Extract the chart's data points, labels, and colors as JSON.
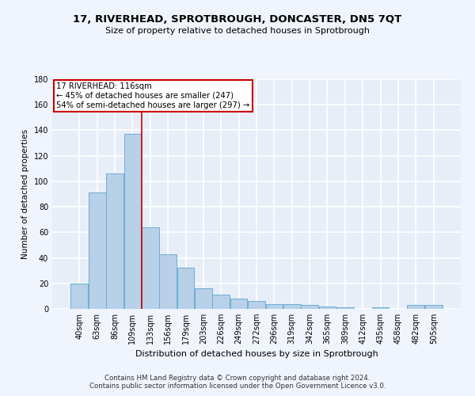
{
  "title1": "17, RIVERHEAD, SPROTBROUGH, DONCASTER, DN5 7QT",
  "title2": "Size of property relative to detached houses in Sprotbrough",
  "xlabel": "Distribution of detached houses by size in Sprotbrough",
  "ylabel": "Number of detached properties",
  "bar_color": "#b8d0e8",
  "bar_edge_color": "#6aaed6",
  "annotation_line_color": "#cc0000",
  "annotation_box_edge": "#cc0000",
  "annotation_text1": "17 RIVERHEAD: 116sqm",
  "annotation_text2": "← 45% of detached houses are smaller (247)",
  "annotation_text3": "54% of semi-detached houses are larger (297) →",
  "categories": [
    "40sqm",
    "63sqm",
    "86sqm",
    "109sqm",
    "133sqm",
    "156sqm",
    "179sqm",
    "203sqm",
    "226sqm",
    "249sqm",
    "272sqm",
    "296sqm",
    "319sqm",
    "342sqm",
    "365sqm",
    "389sqm",
    "412sqm",
    "435sqm",
    "458sqm",
    "482sqm",
    "505sqm"
  ],
  "values": [
    20,
    91,
    106,
    137,
    64,
    43,
    32,
    16,
    11,
    8,
    6,
    4,
    4,
    3,
    2,
    1,
    0,
    1,
    0,
    3,
    3
  ],
  "ylim": [
    0,
    180
  ],
  "yticks": [
    0,
    20,
    40,
    60,
    80,
    100,
    120,
    140,
    160,
    180
  ],
  "vline_x": 3.5,
  "bg_color": "#e8eef8",
  "grid_color": "#ffffff",
  "footer1": "Contains HM Land Registry data © Crown copyright and database right 2024.",
  "footer2": "Contains public sector information licensed under the Open Government Licence v3.0."
}
